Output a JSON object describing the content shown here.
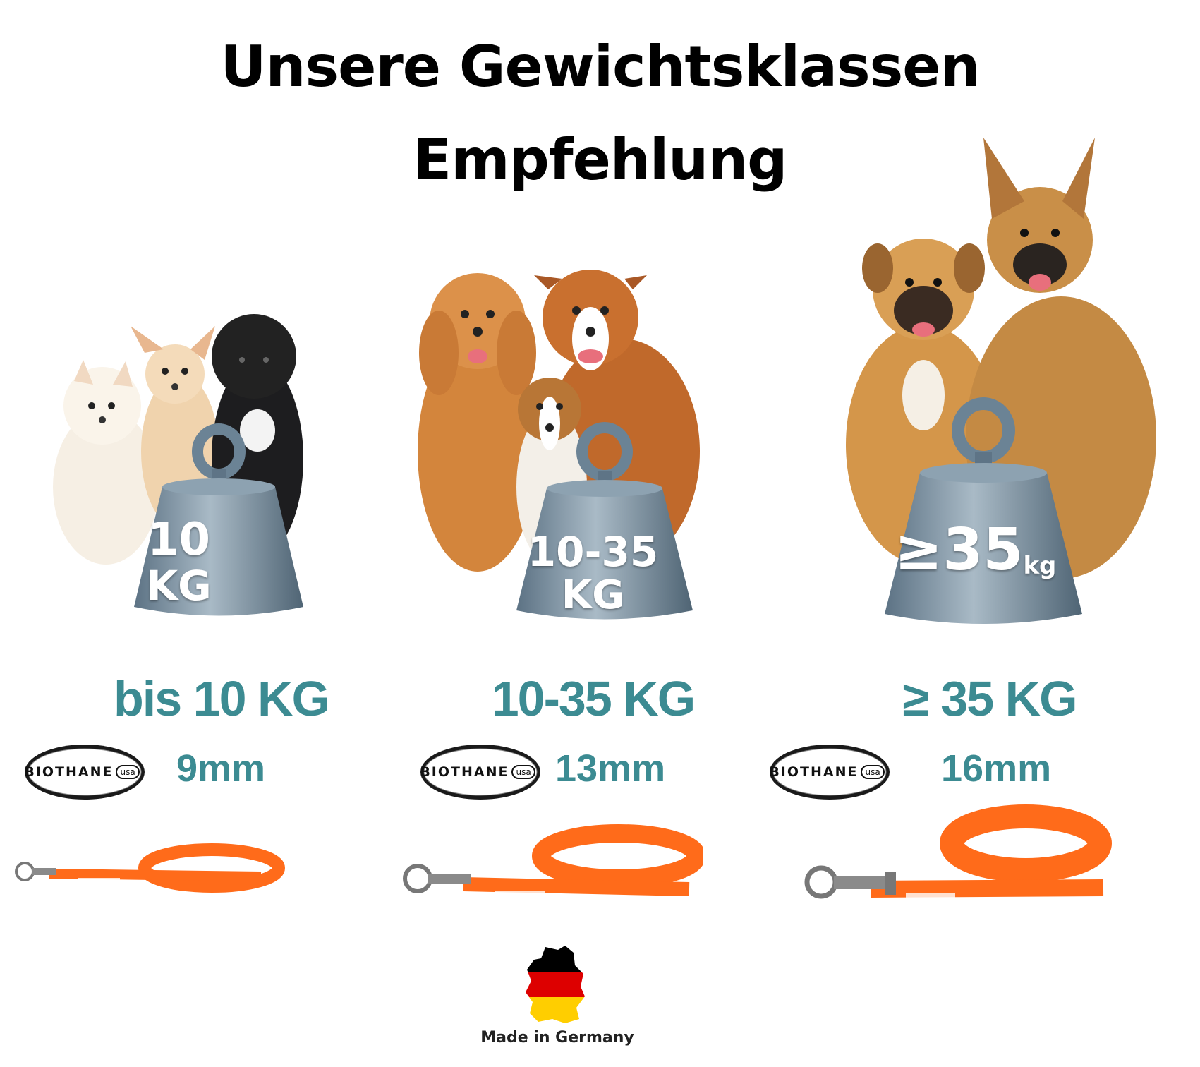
{
  "title": {
    "line1": "Unsere Gewichtsklassen",
    "line2": "Empfehlung"
  },
  "columns": [
    {
      "weight_line1": "10",
      "weight_line2": "KG",
      "class_label": "bis 10 KG",
      "brand": "BIOTHANE",
      "brand_suffix": "usa",
      "width": "9mm"
    },
    {
      "weight_line1": "10-35",
      "weight_line2": "KG",
      "class_label": "10-35 KG",
      "brand": "BIOTHANE",
      "brand_suffix": "usa",
      "width": "13mm"
    },
    {
      "weight_line1": "≥35",
      "weight_unit": "kg",
      "class_label": "≥ 35 KG",
      "brand": "BIOTHANE",
      "brand_suffix": "usa",
      "width": "16mm"
    }
  ],
  "footer": {
    "made_in": "Made in Germany"
  },
  "colors": {
    "accent_teal": "#3c8b92",
    "leash_orange": "#ff6b1a",
    "weight_steel": "#6f8798"
  },
  "icons": [
    "dog-group-small",
    "dog-group-medium",
    "dog-group-large",
    "weight-icon",
    "leash-icon",
    "germany-flag-map-icon"
  ]
}
